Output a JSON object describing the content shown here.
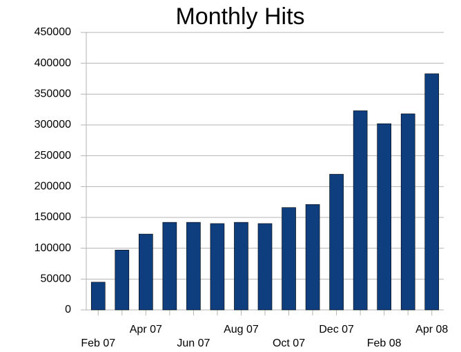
{
  "chart_data": {
    "type": "bar",
    "title": "Monthly Hits",
    "categories": [
      "Feb 07",
      null,
      "Apr 07",
      null,
      "Jun 07",
      null,
      "Aug 07",
      null,
      "Oct 07",
      null,
      "Dec 07",
      null,
      "Feb 08",
      null,
      "Apr 08"
    ],
    "values": [
      45000,
      97000,
      123000,
      142000,
      142000,
      140000,
      142000,
      140000,
      166000,
      171000,
      220000,
      323000,
      302000,
      318000,
      383000
    ],
    "color": "#0e3e7e",
    "ylim": [
      0,
      450000
    ],
    "yticks": [
      0,
      50000,
      100000,
      150000,
      200000,
      250000,
      300000,
      350000,
      400000,
      450000
    ],
    "grid": true
  }
}
